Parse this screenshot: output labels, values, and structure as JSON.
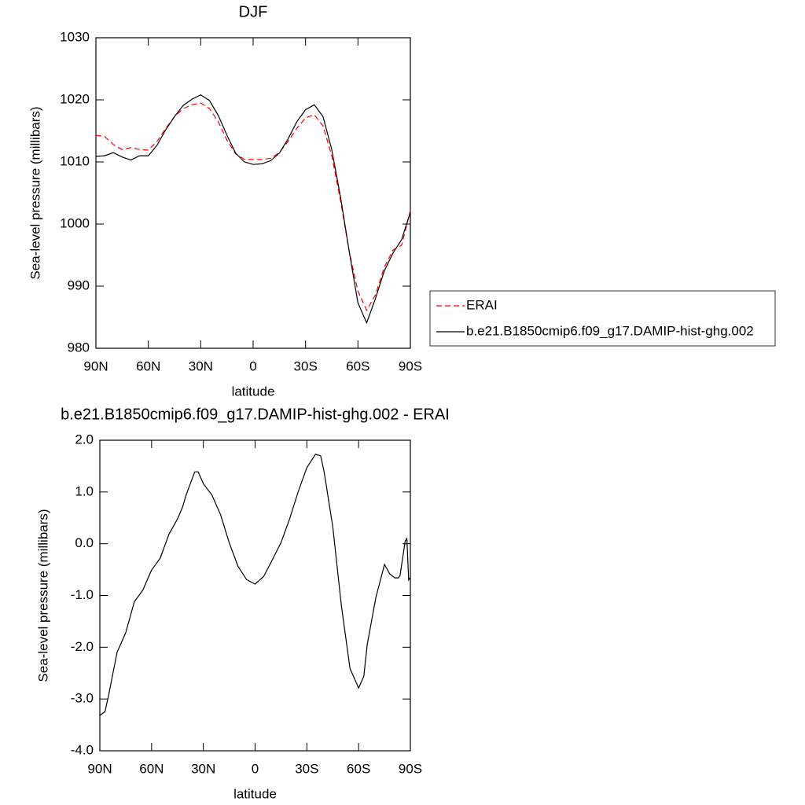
{
  "chart_data": [
    {
      "type": "line",
      "title": "DJF",
      "xlabel": "latitude",
      "ylabel": "Sea-level pressure (millibars)",
      "x": [
        90,
        85,
        80,
        75,
        70,
        65,
        60,
        55,
        50,
        45,
        40,
        35,
        30,
        25,
        20,
        15,
        10,
        5,
        0,
        -5,
        -10,
        -15,
        -20,
        -25,
        -30,
        -35,
        -40,
        -45,
        -50,
        -55,
        -60,
        -65,
        -70,
        -75,
        -80,
        -85,
        -90
      ],
      "xlim": [
        90,
        -90
      ],
      "xticks": [
        {
          "value": 90,
          "label": "90N"
        },
        {
          "value": 60,
          "label": "60N"
        },
        {
          "value": 30,
          "label": "30N"
        },
        0,
        {
          "value": -30,
          "label": "30S"
        },
        {
          "value": -60,
          "label": "60S"
        },
        {
          "value": -90,
          "label": "90S"
        }
      ],
      "ylim": [
        980,
        1030
      ],
      "yticks": [
        980,
        990,
        1000,
        1010,
        1020,
        1030
      ],
      "legend": "right",
      "series": [
        {
          "name": "ERAI",
          "color": "#ff0000",
          "line_style": "dashed",
          "values": [
            1014.3,
            1014.1,
            1012.8,
            1012.0,
            1012.3,
            1012.0,
            1011.9,
            1013.3,
            1015.4,
            1017.3,
            1018.6,
            1019.2,
            1019.5,
            1018.6,
            1016.5,
            1013.5,
            1011.3,
            1010.4,
            1010.4,
            1010.4,
            1010.6,
            1011.5,
            1013.3,
            1015.4,
            1017.1,
            1017.6,
            1015.8,
            1011.0,
            1003.8,
            995.6,
            989.2,
            986.1,
            988.6,
            993.0,
            995.8,
            996.6,
            1002.2
          ]
        },
        {
          "name": "b.e21.B1850cmip6.f09_g17.DAMIP-hist-ghg.002",
          "color": "#000000",
          "line_style": "solid",
          "values": [
            1010.9,
            1011.0,
            1011.5,
            1010.8,
            1010.3,
            1011.0,
            1011.0,
            1012.7,
            1015.2,
            1017.3,
            1019.1,
            1020.1,
            1020.8,
            1019.9,
            1017.5,
            1014.3,
            1011.4,
            1010.0,
            1009.6,
            1009.7,
            1010.2,
            1011.4,
            1013.7,
            1016.5,
            1018.4,
            1019.2,
            1017.3,
            1012.0,
            1004.4,
            995.6,
            987.3,
            984.1,
            988.0,
            992.4,
            995.3,
            997.5,
            1001.9
          ]
        }
      ]
    },
    {
      "type": "line",
      "title": "b.e21.B1850cmip6.f09_g17.DAMIP-hist-ghg.002 - ERAI",
      "xlabel": "latitude",
      "ylabel": "Sea-level pressure (millibars)",
      "x": [
        90,
        87,
        85,
        80,
        75,
        70,
        65,
        62,
        60,
        55,
        50,
        45,
        42,
        40,
        35,
        33,
        30,
        25,
        20,
        15,
        10,
        5,
        0,
        -5,
        -10,
        -15,
        -20,
        -25,
        -30,
        -35,
        -38,
        -40,
        -45,
        -50,
        -55,
        -60,
        -63,
        -65,
        -70,
        -75,
        -78,
        -81,
        -83,
        -84,
        -87,
        -88,
        -89,
        -90
      ],
      "xlim": [
        90,
        -90
      ],
      "xticks": [
        {
          "value": 90,
          "label": "90N"
        },
        {
          "value": 60,
          "label": "60N"
        },
        {
          "value": 30,
          "label": "30N"
        },
        0,
        {
          "value": -30,
          "label": "30S"
        },
        {
          "value": -60,
          "label": "60S"
        },
        {
          "value": -90,
          "label": "90S"
        }
      ],
      "ylim": [
        -4,
        2
      ],
      "yticks": [
        {
          "value": -4,
          "label": "-4.0"
        },
        {
          "value": -3,
          "label": "-3.0"
        },
        {
          "value": -2,
          "label": "-2.0"
        },
        {
          "value": -1,
          "label": "-1.0"
        },
        {
          "value": 0,
          "label": "0.0"
        },
        {
          "value": 1,
          "label": "1.0"
        },
        {
          "value": 2,
          "label": "2.0"
        }
      ],
      "series": [
        {
          "color": "#000000",
          "line_style": "solid",
          "values": [
            -3.32,
            -3.24,
            -2.94,
            -2.1,
            -1.72,
            -1.12,
            -0.89,
            -0.66,
            -0.51,
            -0.28,
            0.18,
            0.48,
            0.71,
            0.94,
            1.39,
            1.39,
            1.16,
            0.94,
            0.56,
            0.02,
            -0.43,
            -0.69,
            -0.78,
            -0.63,
            -0.31,
            0.02,
            0.48,
            1.01,
            1.47,
            1.73,
            1.7,
            1.39,
            0.33,
            -1.19,
            -2.41,
            -2.79,
            -2.56,
            -1.95,
            -1.04,
            -0.4,
            -0.58,
            -0.66,
            -0.66,
            -0.62,
            0.05,
            0.1,
            -0.7,
            -0.65
          ]
        }
      ]
    }
  ]
}
